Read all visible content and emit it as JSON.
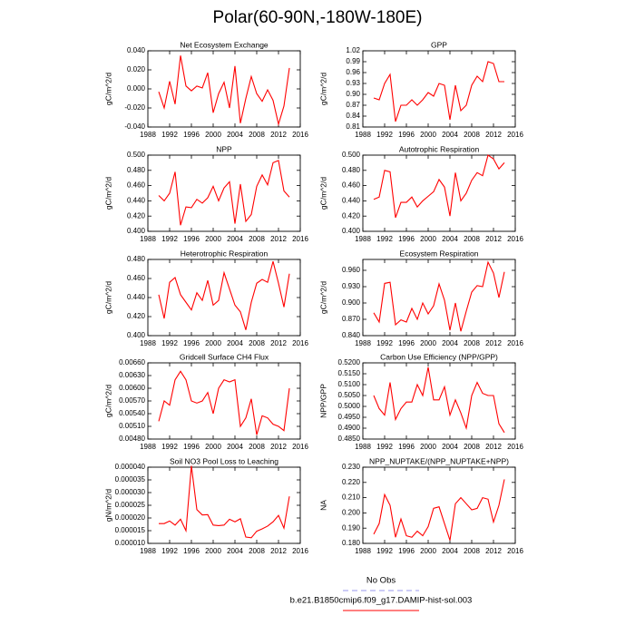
{
  "title": "Polar(60-90N,-180W-180E)",
  "legend": [
    {
      "name": "No Obs",
      "color": "#9999ee",
      "dash": true
    },
    {
      "name": "b.e21.B1850cmip6.f09_g17.DAMIP-hist-sol.003",
      "color": "#ff0000",
      "dash": false
    }
  ],
  "chart_data": [
    {
      "type": "line",
      "title": "Net Ecosystem Exchange",
      "ylabel": "gC/m^2/d",
      "color": "#ff0000",
      "x": [
        1990,
        1991,
        1992,
        1993,
        1994,
        1995,
        1996,
        1997,
        1998,
        1999,
        2000,
        2001,
        2002,
        2003,
        2004,
        2005,
        2006,
        2007,
        2008,
        2009,
        2010,
        2011,
        2012,
        2013,
        2014
      ],
      "values": [
        -0.003,
        -0.02,
        0.008,
        -0.016,
        0.035,
        0.003,
        -0.002,
        0.003,
        0.001,
        0.017,
        -0.025,
        -0.005,
        0.007,
        -0.02,
        0.024,
        -0.036,
        -0.01,
        0.013,
        -0.005,
        -0.013,
        -0.001,
        -0.012,
        -0.037,
        -0.018,
        0.022
      ],
      "xlim": [
        1988,
        2016
      ],
      "xticks": [
        1988,
        1992,
        1996,
        2000,
        2004,
        2008,
        2012,
        2016
      ],
      "ylim": [
        -0.04,
        0.04
      ],
      "yticks": [
        {
          "value": -0.04,
          "label": "-0.040"
        },
        {
          "value": -0.02,
          "label": "-0.020"
        },
        {
          "value": 0,
          "label": "0.000"
        },
        {
          "value": 0.02,
          "label": "0.020"
        },
        {
          "value": 0.04,
          "label": "0.040"
        }
      ]
    },
    {
      "type": "line",
      "title": "GPP",
      "ylabel": "gC/m^2/d",
      "color": "#ff0000",
      "x": [
        1990,
        1991,
        1992,
        1993,
        1994,
        1995,
        1996,
        1997,
        1998,
        1999,
        2000,
        2001,
        2002,
        2003,
        2004,
        2005,
        2006,
        2007,
        2008,
        2009,
        2010,
        2011,
        2012,
        2013,
        2014
      ],
      "values": [
        0.89,
        0.885,
        0.93,
        0.955,
        0.825,
        0.87,
        0.87,
        0.885,
        0.87,
        0.885,
        0.905,
        0.895,
        0.93,
        0.925,
        0.83,
        0.925,
        0.855,
        0.87,
        0.925,
        0.95,
        0.935,
        0.99,
        0.985,
        0.935,
        0.935
      ],
      "xlim": [
        1988,
        2016
      ],
      "xticks": [
        1988,
        1992,
        1996,
        2000,
        2004,
        2008,
        2012,
        2016
      ],
      "ylim": [
        0.81,
        1.02
      ],
      "yticks": [
        0.81,
        0.84,
        0.87,
        {
          "value": 0.9,
          "label": "0.90"
        },
        0.93,
        0.96,
        0.99,
        1.02
      ]
    },
    {
      "type": "line",
      "title": "NPP",
      "ylabel": "gC/m^2/d",
      "color": "#ff0000",
      "x": [
        1990,
        1991,
        1992,
        1993,
        1994,
        1995,
        1996,
        1997,
        1998,
        1999,
        2000,
        2001,
        2002,
        2003,
        2004,
        2005,
        2006,
        2007,
        2008,
        2009,
        2010,
        2011,
        2012,
        2013,
        2014
      ],
      "values": [
        0.447,
        0.44,
        0.45,
        0.478,
        0.408,
        0.432,
        0.431,
        0.442,
        0.437,
        0.444,
        0.459,
        0.44,
        0.457,
        0.465,
        0.41,
        0.462,
        0.413,
        0.422,
        0.459,
        0.474,
        0.461,
        0.49,
        0.493,
        0.453,
        0.445
      ],
      "xlim": [
        1988,
        2016
      ],
      "xticks": [
        1988,
        1992,
        1996,
        2000,
        2004,
        2008,
        2012,
        2016
      ],
      "ylim": [
        0.4,
        0.5
      ],
      "yticks": [
        {
          "value": 0.4,
          "label": "0.400"
        },
        {
          "value": 0.42,
          "label": "0.420"
        },
        {
          "value": 0.44,
          "label": "0.440"
        },
        {
          "value": 0.46,
          "label": "0.460"
        },
        {
          "value": 0.48,
          "label": "0.480"
        },
        {
          "value": 0.5,
          "label": "0.500"
        }
      ]
    },
    {
      "type": "line",
      "title": "Autotrophic Respiration",
      "ylabel": "gC/m^2/d",
      "color": "#ff0000",
      "x": [
        1990,
        1991,
        1992,
        1993,
        1994,
        1995,
        1996,
        1997,
        1998,
        1999,
        2000,
        2001,
        2002,
        2003,
        2004,
        2005,
        2006,
        2007,
        2008,
        2009,
        2010,
        2011,
        2012,
        2013,
        2014
      ],
      "values": [
        0.442,
        0.445,
        0.48,
        0.478,
        0.418,
        0.438,
        0.438,
        0.445,
        0.432,
        0.44,
        0.446,
        0.452,
        0.468,
        0.458,
        0.42,
        0.477,
        0.44,
        0.45,
        0.467,
        0.477,
        0.473,
        0.5,
        0.495,
        0.482,
        0.49
      ],
      "xlim": [
        1988,
        2016
      ],
      "xticks": [
        1988,
        1992,
        1996,
        2000,
        2004,
        2008,
        2012,
        2016
      ],
      "ylim": [
        0.4,
        0.5
      ],
      "yticks": [
        {
          "value": 0.4,
          "label": "0.400"
        },
        {
          "value": 0.42,
          "label": "0.420"
        },
        {
          "value": 0.44,
          "label": "0.440"
        },
        {
          "value": 0.46,
          "label": "0.460"
        },
        {
          "value": 0.48,
          "label": "0.480"
        },
        {
          "value": 0.5,
          "label": "0.500"
        }
      ]
    },
    {
      "type": "line",
      "title": "Heterotrophic Respiration",
      "ylabel": "gC/m^2/d",
      "color": "#ff0000",
      "x": [
        1990,
        1991,
        1992,
        1993,
        1994,
        1995,
        1996,
        1997,
        1998,
        1999,
        2000,
        2001,
        2002,
        2003,
        2004,
        2005,
        2006,
        2007,
        2008,
        2009,
        2010,
        2011,
        2012,
        2013,
        2014
      ],
      "values": [
        0.443,
        0.418,
        0.456,
        0.461,
        0.443,
        0.435,
        0.427,
        0.445,
        0.437,
        0.458,
        0.432,
        0.437,
        0.466,
        0.449,
        0.432,
        0.425,
        0.406,
        0.435,
        0.455,
        0.459,
        0.456,
        0.478,
        0.455,
        0.43,
        0.465
      ],
      "xlim": [
        1988,
        2016
      ],
      "xticks": [
        1988,
        1992,
        1996,
        2000,
        2004,
        2008,
        2012,
        2016
      ],
      "ylim": [
        0.4,
        0.48
      ],
      "yticks": [
        {
          "value": 0.4,
          "label": "0.400"
        },
        {
          "value": 0.42,
          "label": "0.420"
        },
        {
          "value": 0.44,
          "label": "0.440"
        },
        {
          "value": 0.46,
          "label": "0.460"
        },
        {
          "value": 0.48,
          "label": "0.480"
        }
      ]
    },
    {
      "type": "line",
      "title": "Ecosystem Respiration",
      "ylabel": "gC/m^2/d",
      "color": "#ff0000",
      "x": [
        1990,
        1991,
        1992,
        1993,
        1994,
        1995,
        1996,
        1997,
        1998,
        1999,
        2000,
        2001,
        2002,
        2003,
        2004,
        2005,
        2006,
        2007,
        2008,
        2009,
        2010,
        2011,
        2012,
        2013,
        2014
      ],
      "values": [
        0.882,
        0.865,
        0.936,
        0.938,
        0.86,
        0.869,
        0.865,
        0.89,
        0.87,
        0.9,
        0.88,
        0.895,
        0.935,
        0.905,
        0.85,
        0.9,
        0.848,
        0.885,
        0.92,
        0.932,
        0.93,
        0.975,
        0.955,
        0.91,
        0.957
      ],
      "xlim": [
        1988,
        2016
      ],
      "xticks": [
        1988,
        1992,
        1996,
        2000,
        2004,
        2008,
        2012,
        2016
      ],
      "ylim": [
        0.84,
        0.98
      ],
      "yticks": [
        {
          "value": 0.84,
          "label": "0.840"
        },
        {
          "value": 0.87,
          "label": "0.870"
        },
        {
          "value": 0.9,
          "label": "0.900"
        },
        {
          "value": 0.93,
          "label": "0.930"
        },
        {
          "value": 0.96,
          "label": "0.960"
        }
      ]
    },
    {
      "type": "line",
      "title": "Gridcell Surface CH4 Flux",
      "ylabel": "gC/m^2/d",
      "color": "#ff0000",
      "x": [
        1990,
        1991,
        1992,
        1993,
        1994,
        1995,
        1996,
        1997,
        1998,
        1999,
        2000,
        2001,
        2002,
        2003,
        2004,
        2005,
        2006,
        2007,
        2008,
        2009,
        2010,
        2011,
        2012,
        2013,
        2014
      ],
      "values": [
        0.00522,
        0.0057,
        0.0056,
        0.0062,
        0.0064,
        0.0062,
        0.0057,
        0.00565,
        0.0057,
        0.0059,
        0.0054,
        0.006,
        0.0062,
        0.00615,
        0.0062,
        0.0051,
        0.0053,
        0.00575,
        0.0049,
        0.00535,
        0.0053,
        0.00515,
        0.0051,
        0.005,
        0.006
      ],
      "xlim": [
        1988,
        2016
      ],
      "xticks": [
        1988,
        1992,
        1996,
        2000,
        2004,
        2008,
        2012,
        2016
      ],
      "ylim": [
        0.0048,
        0.0066
      ],
      "yticks": [
        {
          "value": 0.0048,
          "label": "0.00480"
        },
        {
          "value": 0.0051,
          "label": "0.00510"
        },
        {
          "value": 0.0054,
          "label": "0.00540"
        },
        {
          "value": 0.0057,
          "label": "0.00570"
        },
        {
          "value": 0.006,
          "label": "0.00600"
        },
        {
          "value": 0.0063,
          "label": "0.00630"
        },
        {
          "value": 0.0066,
          "label": "0.00660"
        }
      ]
    },
    {
      "type": "line",
      "title": "Carbon Use Efficiency (NPP/GPP)",
      "ylabel": "NPP/GPP",
      "color": "#ff0000",
      "x": [
        1990,
        1991,
        1992,
        1993,
        1994,
        1995,
        1996,
        1997,
        1998,
        1999,
        2000,
        2001,
        2002,
        2003,
        2004,
        2005,
        2006,
        2007,
        2008,
        2009,
        2010,
        2011,
        2012,
        2013,
        2014
      ],
      "values": [
        0.505,
        0.499,
        0.496,
        0.511,
        0.494,
        0.499,
        0.502,
        0.502,
        0.51,
        0.505,
        0.518,
        0.503,
        0.503,
        0.509,
        0.496,
        0.503,
        0.497,
        0.49,
        0.505,
        0.511,
        0.506,
        0.505,
        0.505,
        0.492,
        0.488
      ],
      "xlim": [
        1988,
        2016
      ],
      "xticks": [
        1988,
        1992,
        1996,
        2000,
        2004,
        2008,
        2012,
        2016
      ],
      "ylim": [
        0.485,
        0.52
      ],
      "yticks": [
        {
          "value": 0.485,
          "label": "0.4850"
        },
        {
          "value": 0.49,
          "label": "0.4900"
        },
        {
          "value": 0.495,
          "label": "0.4950"
        },
        {
          "value": 0.5,
          "label": "0.5000"
        },
        {
          "value": 0.505,
          "label": "0.5050"
        },
        {
          "value": 0.51,
          "label": "0.5100"
        },
        {
          "value": 0.515,
          "label": "0.5150"
        },
        {
          "value": 0.52,
          "label": "0.5200"
        }
      ]
    },
    {
      "type": "line",
      "title": "Soil NO3 Pool Loss to Leaching",
      "ylabel": "gN/m^2/d",
      "color": "#ff0000",
      "x": [
        1990,
        1991,
        1992,
        1993,
        1994,
        1995,
        1996,
        1997,
        1998,
        1999,
        2000,
        2001,
        2002,
        2003,
        2004,
        2005,
        2006,
        2007,
        2008,
        2009,
        2010,
        2011,
        2012,
        2013,
        2014
      ],
      "values": [
        1.78e-05,
        1.78e-05,
        1.88e-05,
        1.72e-05,
        1.95e-05,
        1.5e-05,
        4.05e-05,
        2.33e-05,
        2.12e-05,
        2.13e-05,
        1.72e-05,
        1.7e-05,
        1.72e-05,
        1.95e-05,
        1.85e-05,
        1.97e-05,
        1.25e-05,
        1.22e-05,
        1.48e-05,
        1.57e-05,
        1.68e-05,
        1.85e-05,
        2.1e-05,
        1.6e-05,
        2.85e-05
      ],
      "xlim": [
        1988,
        2016
      ],
      "xticks": [
        1988,
        1992,
        1996,
        2000,
        2004,
        2008,
        2012,
        2016
      ],
      "ylim": [
        1e-05,
        4e-05
      ],
      "yticks": [
        {
          "value": 1e-05,
          "label": "0.000010"
        },
        {
          "value": 1.5e-05,
          "label": "0.000015"
        },
        {
          "value": 2e-05,
          "label": "0.000020"
        },
        {
          "value": 2.5e-05,
          "label": "0.000025"
        },
        {
          "value": 3e-05,
          "label": "0.000030"
        },
        {
          "value": 3.5e-05,
          "label": "0.000035"
        },
        {
          "value": 4e-05,
          "label": "0.000040"
        }
      ]
    },
    {
      "type": "line",
      "title": "NPP_NUPTAKE/(NPP_NUPTAKE+NPP)",
      "ylabel": "NA",
      "color": "#ff0000",
      "x": [
        1990,
        1991,
        1992,
        1993,
        1994,
        1995,
        1996,
        1997,
        1998,
        1999,
        2000,
        2001,
        2002,
        2003,
        2004,
        2005,
        2006,
        2007,
        2008,
        2009,
        2010,
        2011,
        2012,
        2013,
        2014
      ],
      "values": [
        0.186,
        0.193,
        0.212,
        0.205,
        0.184,
        0.196,
        0.185,
        0.184,
        0.188,
        0.185,
        0.191,
        0.203,
        0.204,
        0.193,
        0.182,
        0.206,
        0.21,
        0.206,
        0.202,
        0.203,
        0.21,
        0.209,
        0.194,
        0.205,
        0.222
      ],
      "xlim": [
        1988,
        2016
      ],
      "xticks": [
        1988,
        1992,
        1996,
        2000,
        2004,
        2008,
        2012,
        2016
      ],
      "ylim": [
        0.18,
        0.23
      ],
      "yticks": [
        {
          "value": 0.18,
          "label": "0.180"
        },
        {
          "value": 0.19,
          "label": "0.190"
        },
        {
          "value": 0.2,
          "label": "0.200"
        },
        {
          "value": 0.21,
          "label": "0.210"
        },
        {
          "value": 0.22,
          "label": "0.220"
        },
        {
          "value": 0.23,
          "label": "0.230"
        }
      ]
    }
  ]
}
